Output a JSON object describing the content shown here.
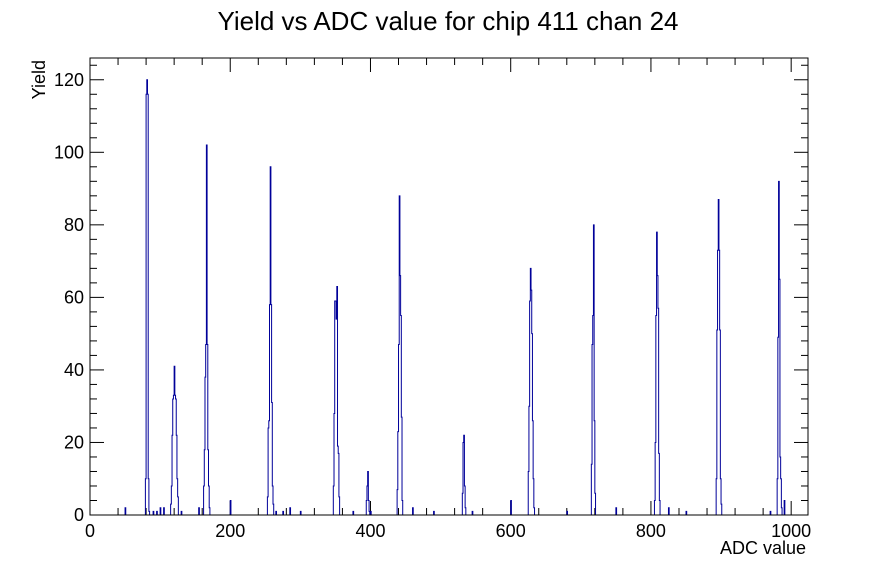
{
  "chart_data": {
    "type": "histogram",
    "title": "Yield vs ADC value for chip 411 chan 24",
    "xlabel": "ADC value",
    "ylabel": "Yield",
    "xlim": [
      0,
      1024
    ],
    "ylim": [
      0,
      126
    ],
    "x_ticks": [
      0,
      200,
      400,
      600,
      800,
      1000
    ],
    "y_ticks": [
      0,
      20,
      40,
      60,
      80,
      100,
      120
    ],
    "grid": false,
    "legend": "none",
    "bin_width": 1,
    "line_color": "#000099",
    "bins": [
      [
        50,
        2
      ],
      [
        79,
        10
      ],
      [
        80,
        116
      ],
      [
        81,
        120
      ],
      [
        82,
        116
      ],
      [
        83,
        10
      ],
      [
        84,
        1
      ],
      [
        90,
        1
      ],
      [
        95,
        1
      ],
      [
        100,
        2
      ],
      [
        105,
        2
      ],
      [
        115,
        3
      ],
      [
        116,
        8
      ],
      [
        117,
        22
      ],
      [
        118,
        32
      ],
      [
        119,
        33
      ],
      [
        120,
        41
      ],
      [
        121,
        33
      ],
      [
        122,
        32
      ],
      [
        123,
        22
      ],
      [
        124,
        10
      ],
      [
        125,
        5
      ],
      [
        130,
        1
      ],
      [
        155,
        2
      ],
      [
        162,
        8
      ],
      [
        163,
        18
      ],
      [
        164,
        38
      ],
      [
        165,
        47
      ],
      [
        166,
        102
      ],
      [
        167,
        47
      ],
      [
        168,
        18
      ],
      [
        169,
        8
      ],
      [
        170,
        2
      ],
      [
        200,
        4
      ],
      [
        253,
        5
      ],
      [
        254,
        24
      ],
      [
        255,
        26
      ],
      [
        256,
        58
      ],
      [
        257,
        96
      ],
      [
        258,
        58
      ],
      [
        259,
        31
      ],
      [
        260,
        8
      ],
      [
        261,
        3
      ],
      [
        265,
        1
      ],
      [
        275,
        1
      ],
      [
        285,
        2
      ],
      [
        300,
        1
      ],
      [
        347,
        8
      ],
      [
        348,
        28
      ],
      [
        349,
        59
      ],
      [
        350,
        59
      ],
      [
        351,
        54
      ],
      [
        352,
        63
      ],
      [
        353,
        19
      ],
      [
        354,
        17
      ],
      [
        355,
        5
      ],
      [
        375,
        1
      ],
      [
        394,
        4
      ],
      [
        395,
        8
      ],
      [
        396,
        12
      ],
      [
        397,
        4
      ],
      [
        398,
        1
      ],
      [
        400,
        1
      ],
      [
        438,
        7
      ],
      [
        439,
        23
      ],
      [
        440,
        47
      ],
      [
        441,
        88
      ],
      [
        442,
        66
      ],
      [
        443,
        55
      ],
      [
        444,
        27
      ],
      [
        445,
        4
      ],
      [
        460,
        2
      ],
      [
        490,
        1
      ],
      [
        531,
        6
      ],
      [
        532,
        20
      ],
      [
        533,
        22
      ],
      [
        534,
        8
      ],
      [
        535,
        2
      ],
      [
        545,
        1
      ],
      [
        600,
        4
      ],
      [
        625,
        12
      ],
      [
        626,
        30
      ],
      [
        627,
        59
      ],
      [
        628,
        68
      ],
      [
        629,
        62
      ],
      [
        630,
        50
      ],
      [
        631,
        26
      ],
      [
        632,
        10
      ],
      [
        633,
        2
      ],
      [
        680,
        1
      ],
      [
        715,
        14
      ],
      [
        716,
        47
      ],
      [
        717,
        55
      ],
      [
        718,
        80
      ],
      [
        719,
        26
      ],
      [
        720,
        6
      ],
      [
        750,
        2
      ],
      [
        805,
        4
      ],
      [
        806,
        20
      ],
      [
        807,
        55
      ],
      [
        808,
        78
      ],
      [
        809,
        66
      ],
      [
        810,
        57
      ],
      [
        811,
        17
      ],
      [
        812,
        4
      ],
      [
        825,
        2
      ],
      [
        850,
        1
      ],
      [
        893,
        10
      ],
      [
        894,
        51
      ],
      [
        895,
        73
      ],
      [
        896,
        87
      ],
      [
        897,
        73
      ],
      [
        898,
        51
      ],
      [
        899,
        10
      ],
      [
        900,
        3
      ],
      [
        970,
        1
      ],
      [
        980,
        10
      ],
      [
        981,
        49
      ],
      [
        982,
        92
      ],
      [
        983,
        65
      ],
      [
        984,
        16
      ],
      [
        985,
        10
      ],
      [
        986,
        2
      ],
      [
        990,
        4
      ]
    ]
  }
}
